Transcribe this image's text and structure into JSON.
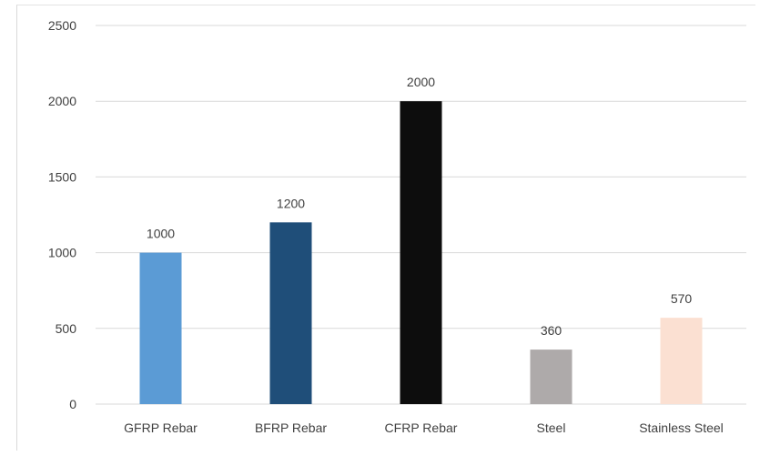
{
  "chart_data": {
    "type": "bar",
    "categories": [
      "GFRP Rebar",
      "BFRP Rebar",
      "CFRP Rebar",
      "Steel",
      "Stainless Steel"
    ],
    "values": [
      1000,
      1200,
      2000,
      360,
      570
    ],
    "data_labels": [
      "1000",
      "1200",
      "2000",
      "360",
      "570"
    ],
    "bar_colors": [
      "#5b9bd5",
      "#1f4e79",
      "#0d0d0d",
      "#aeaaaa",
      "#fbe0d2"
    ],
    "title": "",
    "xlabel": "",
    "ylabel": "",
    "ylim": [
      0,
      2500
    ],
    "yticks": [
      0,
      500,
      1000,
      1500,
      2000,
      2500
    ],
    "ytick_labels": [
      "0",
      "500",
      "1000",
      "1500",
      "2000",
      "2500"
    ],
    "grid": true,
    "grid_color": "#d9d9d9",
    "text_color": "#404040",
    "legend": "none"
  }
}
